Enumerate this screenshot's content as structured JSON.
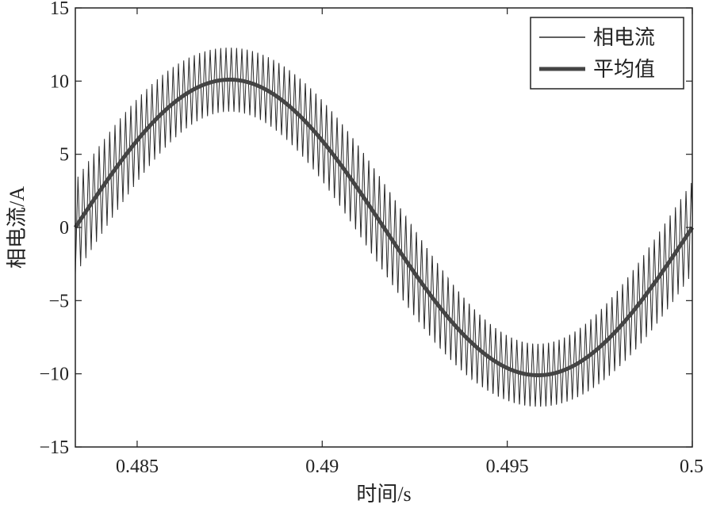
{
  "chart_data": {
    "type": "line",
    "title": "",
    "xlabel": "时间/s",
    "ylabel": "相电流/A",
    "xlim": [
      0.48333,
      0.5
    ],
    "ylim": [
      -15,
      15
    ],
    "x_ticks": [
      0.485,
      0.49,
      0.495,
      0.5
    ],
    "x_tick_labels": [
      "0.485",
      "0.49",
      "0.495",
      "0.5"
    ],
    "y_ticks": [
      -15,
      -10,
      -5,
      0,
      5,
      10,
      15
    ],
    "y_tick_labels": [
      "−15",
      "−10",
      "−5",
      "0",
      "5",
      "10",
      "15"
    ],
    "grid": false,
    "legend_position": "top-right",
    "fundamental": {
      "amplitude": 10.1,
      "period": 0.01667,
      "zero_crossing": 0.48333
    },
    "series": [
      {
        "name": "相电流",
        "style": "thin",
        "ripple_amplitude": 3.2,
        "ripple_frequency": 7000,
        "color": "#2a2a2a"
      },
      {
        "name": "平均值",
        "style": "thick",
        "color": "#444444"
      }
    ]
  }
}
